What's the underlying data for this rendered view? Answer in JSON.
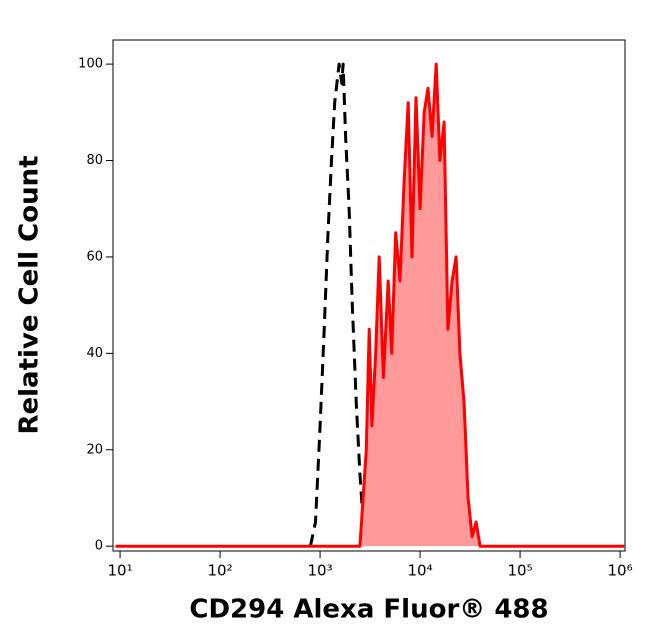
{
  "chart_data": {
    "type": "histogram-line",
    "x_label": "CD294 Alexa Fluor® 488",
    "y_label": "Relative Cell Count",
    "xscale": "log",
    "xlim": [
      8.5,
      1120000
    ],
    "xticks": [
      {
        "value": 10,
        "label": "10¹"
      },
      {
        "value": 100,
        "label": "10²"
      },
      {
        "value": 1000,
        "label": "10³"
      },
      {
        "value": 10000,
        "label": "10⁴"
      },
      {
        "value": 100000,
        "label": "10⁵"
      },
      {
        "value": 1000000,
        "label": "10⁶"
      }
    ],
    "ylim": [
      -1,
      105
    ],
    "yticks": [
      0,
      20,
      40,
      60,
      80,
      100
    ],
    "series": [
      {
        "color": "#000000",
        "dashed": true,
        "x": [
          800,
          900,
          1000,
          1100,
          1200,
          1300,
          1400,
          1550,
          1650,
          1700,
          1800,
          1950,
          2100,
          2300,
          2500,
          2700,
          2900
        ],
        "values": [
          0,
          5,
          25,
          45,
          65,
          80,
          92,
          100,
          96,
          100,
          85,
          70,
          50,
          30,
          15,
          5,
          0
        ]
      },
      {
        "color": "#ff0000",
        "fill": "#ff9a9a",
        "dashed": false,
        "x": [
          9,
          2500,
          2900,
          3100,
          3300,
          3600,
          3900,
          4300,
          4800,
          5200,
          5700,
          6300,
          6900,
          7600,
          8300,
          9100,
          10000,
          11000,
          12000,
          13200,
          14500,
          15800,
          17400,
          19000,
          20900,
          22900,
          25000,
          27500,
          30200,
          33100,
          36300,
          39800,
          1100000
        ],
        "values": [
          0,
          0,
          20,
          45,
          25,
          40,
          60,
          35,
          55,
          40,
          65,
          55,
          75,
          92,
          60,
          93,
          70,
          90,
          95,
          85,
          100,
          80,
          88,
          45,
          55,
          60,
          40,
          30,
          10,
          2,
          5,
          0,
          0
        ]
      }
    ]
  }
}
